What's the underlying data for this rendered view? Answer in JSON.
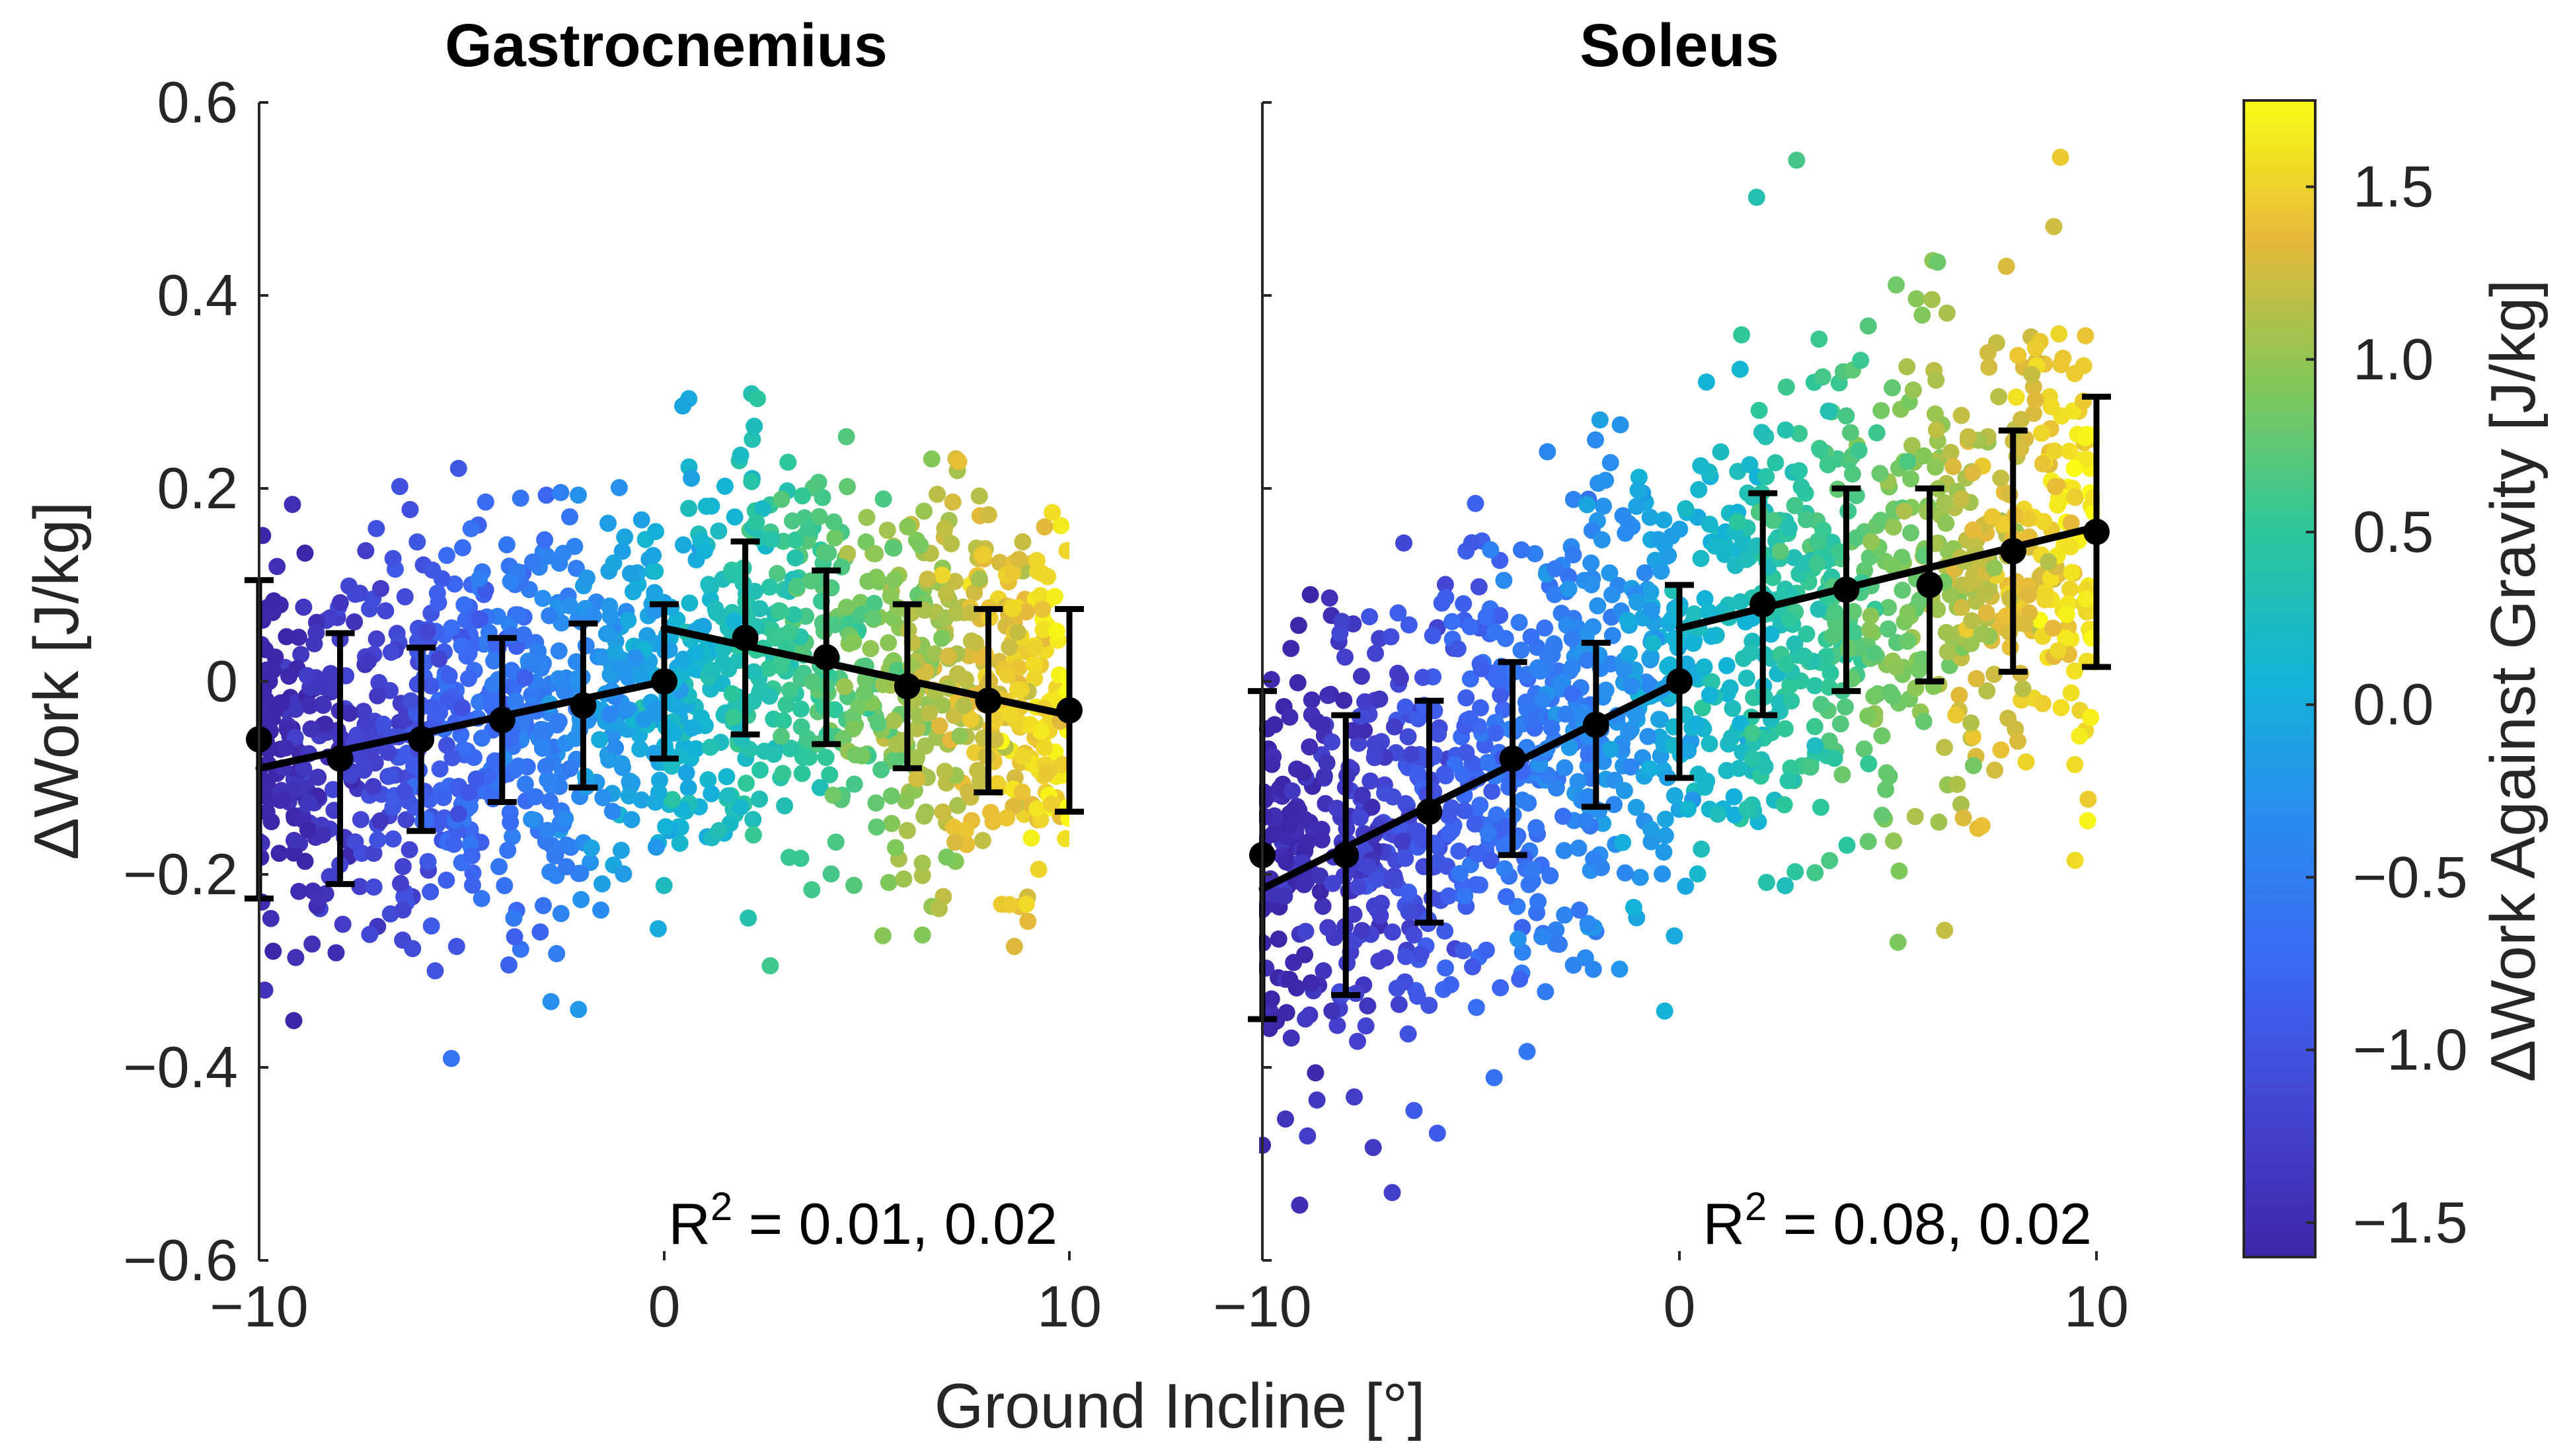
{
  "figure": {
    "xlabel": "Ground Incline [°]",
    "ylabel": "ΔWork [J/kg]",
    "colorbar_label": "ΔWork Against Gravity [J/kg]"
  },
  "chart_data": [
    {
      "type": "scatter",
      "title": "Gastrocnemius",
      "xlabel": "Ground Incline [°]",
      "ylabel": "ΔWork [J/kg]",
      "xlim": [
        -10,
        10
      ],
      "ylim": [
        -0.6,
        0.6
      ],
      "x_ticks": [
        -10,
        0,
        10
      ],
      "x_tick_labels": [
        "−10",
        "0",
        "10"
      ],
      "y_ticks": [
        -0.6,
        -0.4,
        -0.2,
        0,
        0.2,
        0.4,
        0.6
      ],
      "y_tick_labels": [
        "−0.6",
        "−0.4",
        "−0.2",
        "0",
        "0.2",
        "0.4",
        "0.6"
      ],
      "annotation": {
        "prefix": "R",
        "sup": "2",
        "suffix": " = 0.01, 0.02"
      },
      "scatter_color_by": "ΔWork Against Gravity [J/kg]",
      "scatter_spread_sd": 0.1,
      "mean_points": {
        "x": [
          -10,
          -8,
          -6,
          -4,
          -2,
          0,
          2,
          4,
          6,
          8,
          10
        ],
        "y": [
          -0.06,
          -0.08,
          -0.06,
          -0.04,
          -0.025,
          0.0,
          0.045,
          0.025,
          -0.005,
          -0.02,
          -0.03
        ],
        "err": [
          0.165,
          0.13,
          0.095,
          0.085,
          0.085,
          0.08,
          0.1,
          0.09,
          0.085,
          0.095,
          0.105
        ]
      },
      "fit_lines": [
        {
          "x": [
            -10,
            0
          ],
          "y": [
            -0.09,
            0.0
          ]
        },
        {
          "x": [
            0,
            10
          ],
          "y": [
            0.055,
            -0.035
          ]
        }
      ]
    },
    {
      "type": "scatter",
      "title": "Soleus",
      "xlabel": "Ground Incline [°]",
      "ylabel": "ΔWork [J/kg]",
      "xlim": [
        -10,
        10
      ],
      "ylim": [
        -0.6,
        0.6
      ],
      "x_ticks": [
        -10,
        0,
        10
      ],
      "x_tick_labels": [
        "−10",
        "0",
        "10"
      ],
      "annotation": {
        "prefix": "R",
        "sup": "2",
        "suffix": " = 0.08, 0.02"
      },
      "scatter_color_by": "ΔWork Against Gravity [J/kg]",
      "scatter_spread_sd": 0.12,
      "mean_points": {
        "x": [
          -10,
          -8,
          -6,
          -4,
          -2,
          0,
          2,
          4,
          6,
          8,
          10
        ],
        "y": [
          -0.18,
          -0.18,
          -0.135,
          -0.08,
          -0.045,
          0.0,
          0.08,
          0.095,
          0.1,
          0.135,
          0.155
        ],
        "err": [
          0.17,
          0.145,
          0.115,
          0.1,
          0.085,
          0.1,
          0.115,
          0.105,
          0.1,
          0.125,
          0.14
        ]
      },
      "fit_lines": [
        {
          "x": [
            -10,
            0
          ],
          "y": [
            -0.215,
            0.0
          ]
        },
        {
          "x": [
            0,
            10
          ],
          "y": [
            0.055,
            0.16
          ]
        }
      ]
    },
    {
      "type": "heatmap",
      "title": "",
      "role": "colorbar",
      "colormap": "parula",
      "label": "ΔWork Against Gravity [J/kg]",
      "range": [
        -1.6,
        1.75
      ],
      "ticks": [
        -1.5,
        -1.0,
        -0.5,
        0.0,
        0.5,
        1.0,
        1.5
      ],
      "tick_labels": [
        "−1.5",
        "−1.0",
        "−0.5",
        "0.0",
        "0.5",
        "1.0",
        "1.5"
      ]
    }
  ]
}
